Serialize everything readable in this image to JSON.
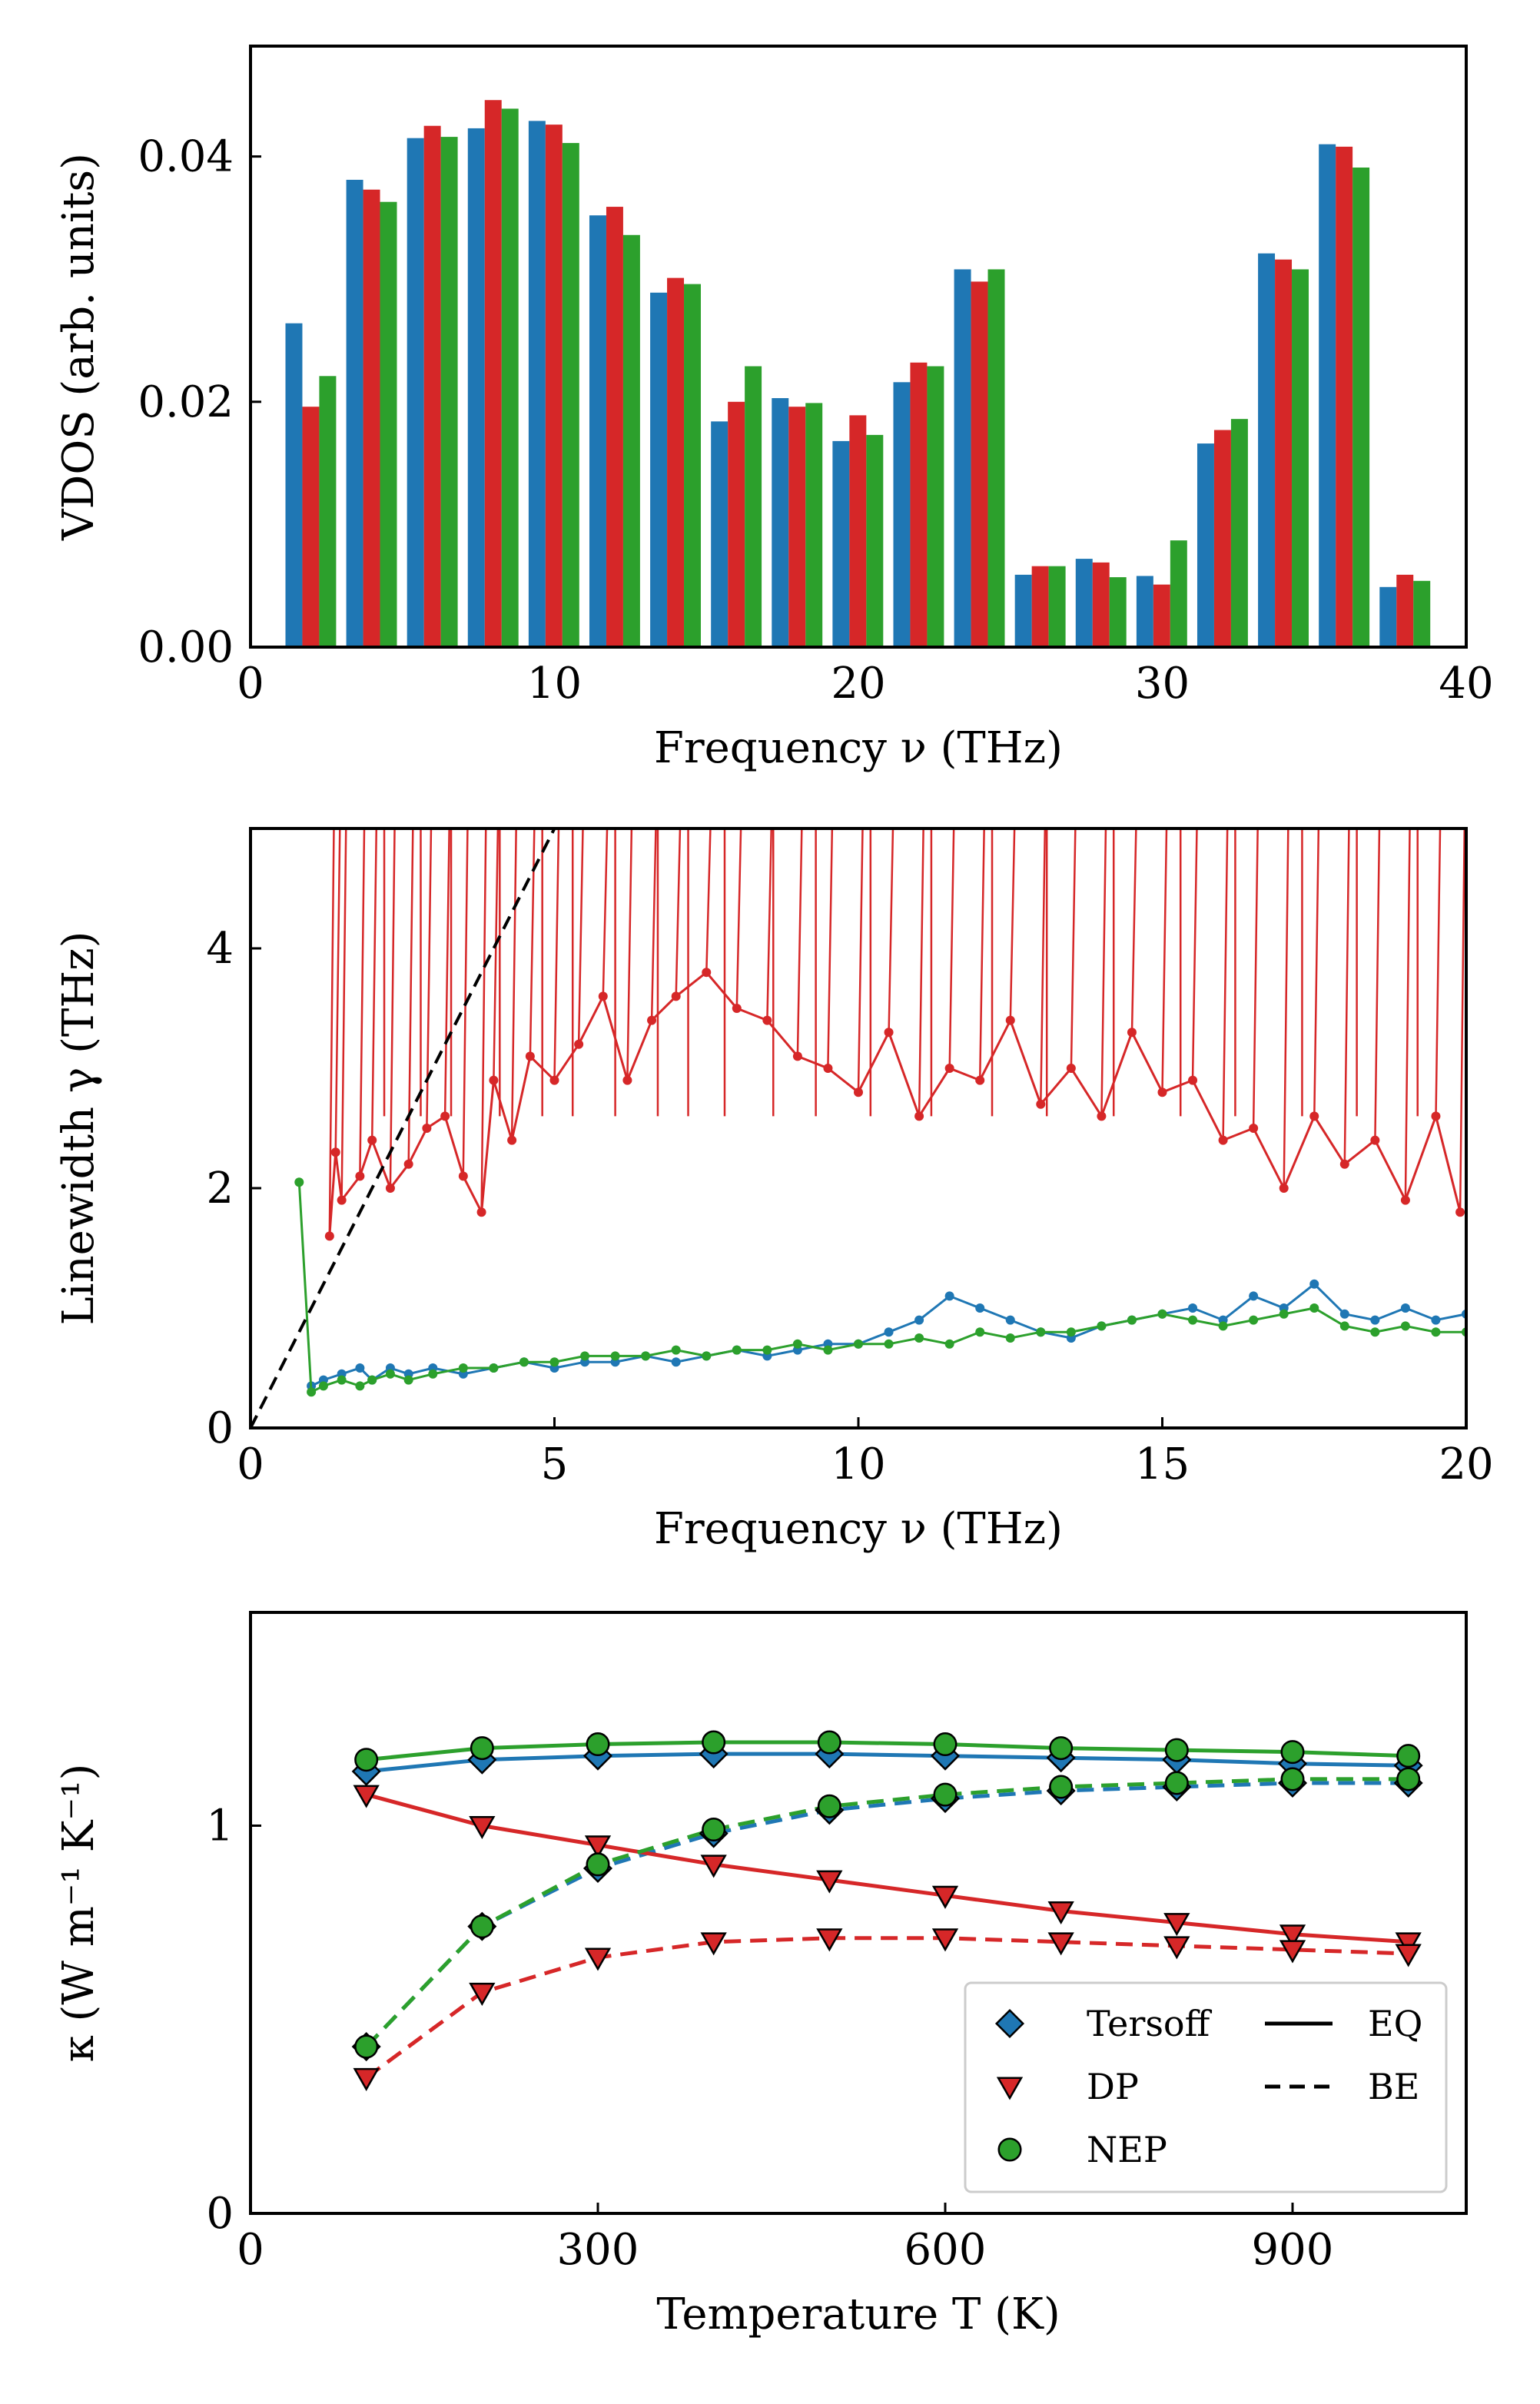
{
  "colors": {
    "blue": "#1f77b4",
    "red": "#d62728",
    "green": "#2ca02c",
    "black": "#000000",
    "legend_edge": "#cccccc"
  },
  "chart_data": [
    {
      "id": "vdos",
      "type": "bar",
      "xlabel": "Frequency ν (THz)",
      "ylabel": "VDOS (arb. units)",
      "xlim": [
        0,
        40
      ],
      "ylim": [
        0,
        0.049
      ],
      "xticks": [
        0,
        10,
        20,
        30,
        40
      ],
      "xtick_labels": [
        "0",
        "10",
        "20",
        "30",
        "40"
      ],
      "yticks": [
        0,
        0.02,
        0.04
      ],
      "ytick_labels": [
        "0.00",
        "0.02",
        "0.04"
      ],
      "bin_width": 2,
      "categories": [
        2,
        4,
        6,
        8,
        10,
        12,
        14,
        16,
        18,
        20,
        22,
        24,
        26,
        28,
        30,
        32,
        34,
        36,
        38,
        40
      ],
      "series": [
        {
          "name": "Tersoff",
          "color": "blue",
          "values": [
            0.0264,
            0.0381,
            0.0415,
            0.0423,
            0.0429,
            0.0352,
            0.0289,
            0.0184,
            0.0203,
            0.0168,
            0.0216,
            0.0308,
            0.0059,
            0.0072,
            0.0058,
            0.0166,
            0.0321,
            0.041,
            0.0049,
            0.0
          ]
        },
        {
          "name": "DP",
          "color": "red",
          "values": [
            0.0196,
            0.0373,
            0.0425,
            0.0446,
            0.0426,
            0.0359,
            0.0301,
            0.02,
            0.0196,
            0.0189,
            0.0232,
            0.0298,
            0.0066,
            0.0069,
            0.0051,
            0.0177,
            0.0316,
            0.0408,
            0.0059,
            0.0
          ]
        },
        {
          "name": "NEP",
          "color": "green",
          "values": [
            0.0221,
            0.0363,
            0.0416,
            0.0439,
            0.0411,
            0.0336,
            0.0296,
            0.0229,
            0.0199,
            0.0173,
            0.0229,
            0.0308,
            0.0066,
            0.0057,
            0.0087,
            0.0186,
            0.0308,
            0.0391,
            0.0054,
            0.0
          ]
        }
      ]
    },
    {
      "id": "linewidth",
      "type": "scatter",
      "xlabel": "Frequency ν (THz)",
      "ylabel": "Linewidth γ (THz)",
      "xlim": [
        0,
        20
      ],
      "ylim": [
        0,
        5
      ],
      "xticks": [
        0,
        5,
        10,
        15,
        20
      ],
      "xtick_labels": [
        "0",
        "5",
        "10",
        "15",
        "20"
      ],
      "yticks": [
        0,
        2,
        4
      ],
      "ytick_labels": [
        "0",
        "2",
        "4"
      ],
      "reference_line": {
        "style": "dashed",
        "color": "black",
        "x": [
          0,
          5
        ],
        "y": [
          0,
          5
        ]
      },
      "series": [
        {
          "name": "DP",
          "color": "red",
          "x": [
            1.3,
            1.4,
            1.5,
            1.8,
            2.0,
            2.3,
            2.6,
            2.9,
            3.2,
            3.5,
            3.8,
            4.0,
            4.3,
            4.6,
            5.0,
            5.4,
            5.8,
            6.2,
            6.6,
            7.0,
            7.5,
            8.0,
            8.5,
            9.0,
            9.5,
            10.0,
            10.5,
            11.0,
            11.5,
            12.0,
            12.5,
            13.0,
            13.5,
            14.0,
            14.5,
            15.0,
            15.5,
            16.0,
            16.5,
            17.0,
            17.5,
            18.0,
            18.5,
            19.0,
            19.5,
            19.9
          ],
          "y": [
            1.6,
            2.3,
            1.9,
            2.1,
            2.4,
            2.0,
            2.2,
            2.5,
            2.6,
            2.1,
            1.8,
            2.9,
            2.4,
            3.1,
            2.9,
            3.2,
            3.6,
            2.9,
            3.4,
            3.6,
            3.8,
            3.5,
            3.4,
            3.1,
            3.0,
            2.8,
            3.3,
            2.6,
            3.0,
            2.9,
            3.4,
            2.7,
            3.0,
            2.6,
            3.3,
            2.8,
            2.9,
            2.4,
            2.5,
            2.0,
            2.6,
            2.2,
            2.4,
            1.9,
            2.6,
            1.8
          ]
        },
        {
          "name": "Tersoff",
          "color": "blue",
          "x": [
            1.0,
            1.2,
            1.5,
            1.8,
            2.0,
            2.3,
            2.6,
            3.0,
            3.5,
            4.0,
            4.5,
            5.0,
            5.5,
            6.0,
            6.5,
            7.0,
            7.5,
            8.0,
            8.5,
            9.0,
            9.5,
            10.0,
            10.5,
            11.0,
            11.5,
            12.0,
            12.5,
            13.0,
            13.5,
            14.0,
            14.5,
            15.0,
            15.5,
            16.0,
            16.5,
            17.0,
            17.5,
            18.0,
            18.5,
            19.0,
            19.5,
            20.0
          ],
          "y": [
            0.35,
            0.4,
            0.45,
            0.5,
            0.4,
            0.5,
            0.45,
            0.5,
            0.45,
            0.5,
            0.55,
            0.5,
            0.55,
            0.55,
            0.6,
            0.55,
            0.6,
            0.65,
            0.6,
            0.65,
            0.7,
            0.7,
            0.8,
            0.9,
            1.1,
            1.0,
            0.9,
            0.8,
            0.75,
            0.85,
            0.9,
            0.95,
            1.0,
            0.9,
            1.1,
            1.0,
            1.2,
            0.95,
            0.9,
            1.0,
            0.9,
            0.95
          ]
        },
        {
          "name": "NEP",
          "color": "green",
          "x": [
            0.8,
            1.0,
            1.2,
            1.5,
            1.8,
            2.0,
            2.3,
            2.6,
            3.0,
            3.5,
            4.0,
            4.5,
            5.0,
            5.5,
            6.0,
            6.5,
            7.0,
            7.5,
            8.0,
            8.5,
            9.0,
            9.5,
            10.0,
            10.5,
            11.0,
            11.5,
            12.0,
            12.5,
            13.0,
            13.5,
            14.0,
            14.5,
            15.0,
            15.5,
            16.0,
            16.5,
            17.0,
            17.5,
            18.0,
            18.5,
            19.0,
            19.5,
            20.0
          ],
          "y": [
            2.05,
            0.3,
            0.35,
            0.4,
            0.35,
            0.4,
            0.45,
            0.4,
            0.45,
            0.5,
            0.5,
            0.55,
            0.55,
            0.6,
            0.6,
            0.6,
            0.65,
            0.6,
            0.65,
            0.65,
            0.7,
            0.65,
            0.7,
            0.7,
            0.75,
            0.7,
            0.8,
            0.75,
            0.8,
            0.8,
            0.85,
            0.9,
            0.95,
            0.9,
            0.85,
            0.9,
            0.95,
            1.0,
            0.85,
            0.8,
            0.85,
            0.8,
            0.8
          ]
        }
      ],
      "spike_series": {
        "name": "DP",
        "color": "red",
        "x": [
          2.2,
          2.8,
          3.3,
          4.1,
          4.8,
          5.3,
          6.0,
          6.7,
          7.2,
          7.8,
          8.6,
          9.3,
          10.2,
          11.2,
          12.2,
          13.1,
          14.2,
          15.3,
          16.2,
          17.3,
          18.2,
          19.2
        ],
        "y": [
          5,
          5,
          5,
          5,
          5,
          5,
          5,
          5,
          5,
          5,
          5,
          5,
          5,
          5,
          5,
          5,
          5,
          5,
          5,
          5,
          5,
          5
        ]
      }
    },
    {
      "id": "kappa",
      "type": "line",
      "xlabel": "Temperature T (K)",
      "ylabel": "κ (W m⁻¹ K⁻¹)",
      "xlim": [
        0,
        1050
      ],
      "ylim": [
        0,
        1.55
      ],
      "xticks": [
        0,
        300,
        600,
        900
      ],
      "xtick_labels": [
        "0",
        "300",
        "600",
        "900"
      ],
      "yticks": [
        0,
        1
      ],
      "ytick_labels": [
        "0",
        "1"
      ],
      "x": [
        100,
        200,
        300,
        400,
        500,
        600,
        700,
        800,
        900,
        1000
      ],
      "series": [
        {
          "name": "Tersoff",
          "method": "EQ",
          "color": "blue",
          "marker": "diamond",
          "values": [
            1.14,
            1.17,
            1.18,
            1.185,
            1.185,
            1.18,
            1.175,
            1.17,
            1.16,
            1.155
          ]
        },
        {
          "name": "Tersoff",
          "method": "BE",
          "color": "blue",
          "marker": "diamond",
          "values": [
            0.43,
            0.74,
            0.89,
            0.98,
            1.04,
            1.07,
            1.09,
            1.1,
            1.11,
            1.11
          ]
        },
        {
          "name": "DP",
          "method": "EQ",
          "color": "red",
          "marker": "triangle",
          "values": [
            1.08,
            1.0,
            0.95,
            0.9,
            0.86,
            0.82,
            0.78,
            0.75,
            0.72,
            0.7
          ]
        },
        {
          "name": "DP",
          "method": "BE",
          "color": "red",
          "marker": "triangle",
          "values": [
            0.35,
            0.57,
            0.66,
            0.7,
            0.71,
            0.71,
            0.7,
            0.69,
            0.68,
            0.67
          ]
        },
        {
          "name": "NEP",
          "method": "EQ",
          "color": "green",
          "marker": "circle",
          "values": [
            1.17,
            1.2,
            1.21,
            1.215,
            1.215,
            1.21,
            1.2,
            1.195,
            1.19,
            1.18
          ]
        },
        {
          "name": "NEP",
          "method": "BE",
          "color": "green",
          "marker": "circle",
          "values": [
            0.43,
            0.74,
            0.9,
            0.99,
            1.05,
            1.08,
            1.1,
            1.11,
            1.12,
            1.12
          ]
        }
      ],
      "legend": {
        "location": "lower-right",
        "markers": [
          {
            "label": "Tersoff",
            "color": "blue",
            "marker": "diamond"
          },
          {
            "label": "DP",
            "color": "red",
            "marker": "triangle"
          },
          {
            "label": "NEP",
            "color": "green",
            "marker": "circle"
          }
        ],
        "styles": [
          {
            "label": "EQ",
            "style": "solid"
          },
          {
            "label": "BE",
            "style": "dashed"
          }
        ]
      }
    }
  ]
}
